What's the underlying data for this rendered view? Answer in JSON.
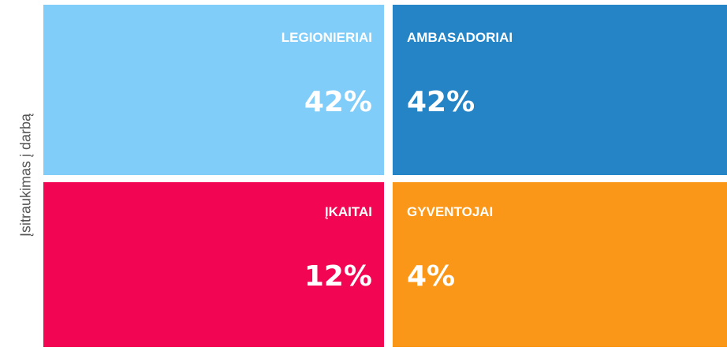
{
  "axis_label": "Įsitraukimas į darbą",
  "quadrants": [
    {
      "label": "LEGIONIERIAI",
      "value": "42%"
    },
    {
      "label": "AMBASADORIAI",
      "value": "42%"
    },
    {
      "label": "ĮKAITAI",
      "value": "12%"
    },
    {
      "label": "GYVENTOJAI",
      "value": "4%"
    }
  ]
}
